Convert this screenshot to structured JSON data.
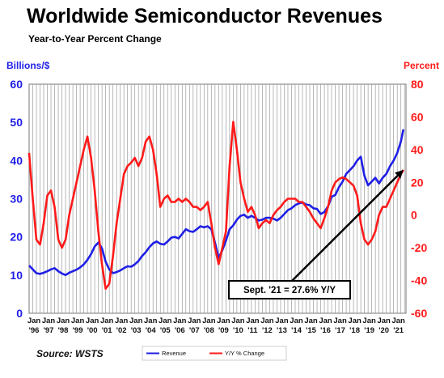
{
  "chart_data": {
    "type": "line",
    "title": "Worldwide Semiconductor Revenues",
    "subtitle": "Year-to-Year Percent Change",
    "y_left_label": "Billions/$",
    "y_right_label": "Percent",
    "ylim_left": [
      0,
      60
    ],
    "ylim_right": [
      -60,
      80
    ],
    "y_left_ticks": [
      "0",
      "10",
      "20",
      "30",
      "40",
      "50",
      "60"
    ],
    "y_right_ticks": [
      "-60",
      "-40",
      "-20",
      "0",
      "20",
      "40",
      "60",
      "80"
    ],
    "x_tick_top": "Jan",
    "x_tick_labels": [
      "'96",
      "'97",
      "'98",
      "'99",
      "'00",
      "'01",
      "'02",
      "'03",
      "'04",
      "'05",
      "'06",
      "'07",
      "'08",
      "'09",
      "'10",
      "'11",
      "'12",
      "'13",
      "'14",
      "'15",
      "'16",
      "'17",
      "'18",
      "'19",
      "'20",
      "'21"
    ],
    "grid": "vertical",
    "colors": {
      "revenue": "#1f1fe6",
      "yoy": "#ff1a1a",
      "left_axis": "#1f1fe6",
      "right_axis": "#ff1a1a"
    },
    "legend_position": "bottom-center",
    "series": [
      {
        "name": "Revenue",
        "axis": "left",
        "x": [
          1996.0,
          1996.25,
          1996.5,
          1996.75,
          1997.0,
          1997.25,
          1997.5,
          1997.75,
          1998.0,
          1998.25,
          1998.5,
          1998.75,
          1999.0,
          1999.25,
          1999.5,
          1999.75,
          2000.0,
          2000.25,
          2000.5,
          2000.75,
          2001.0,
          2001.25,
          2001.5,
          2001.75,
          2002.0,
          2002.25,
          2002.5,
          2002.75,
          2003.0,
          2003.25,
          2003.5,
          2003.75,
          2004.0,
          2004.25,
          2004.5,
          2004.75,
          2005.0,
          2005.25,
          2005.5,
          2005.75,
          2006.0,
          2006.25,
          2006.5,
          2006.75,
          2007.0,
          2007.25,
          2007.5,
          2007.75,
          2008.0,
          2008.25,
          2008.5,
          2008.75,
          2009.0,
          2009.25,
          2009.5,
          2009.75,
          2010.0,
          2010.25,
          2010.5,
          2010.75,
          2011.0,
          2011.25,
          2011.5,
          2011.75,
          2012.0,
          2012.25,
          2012.5,
          2012.75,
          2013.0,
          2013.25,
          2013.5,
          2013.75,
          2014.0,
          2014.25,
          2014.5,
          2014.75,
          2015.0,
          2015.25,
          2015.5,
          2015.75,
          2016.0,
          2016.25,
          2016.5,
          2016.75,
          2017.0,
          2017.25,
          2017.5,
          2017.75,
          2018.0,
          2018.25,
          2018.5,
          2018.75,
          2019.0,
          2019.25,
          2019.5,
          2019.75,
          2020.0,
          2020.25,
          2020.5,
          2020.75,
          2021.0,
          2021.25,
          2021.5,
          2021.67
        ],
        "values": [
          12.5,
          11.5,
          10.5,
          10.3,
          10.6,
          11.0,
          11.5,
          11.8,
          11.0,
          10.4,
          10.0,
          10.6,
          11.0,
          11.4,
          12.0,
          12.8,
          14.0,
          15.5,
          17.5,
          18.5,
          17.0,
          13.5,
          11.5,
          10.5,
          10.8,
          11.2,
          11.8,
          12.3,
          12.2,
          12.8,
          13.7,
          15.0,
          16.0,
          17.3,
          18.3,
          18.8,
          18.2,
          18.0,
          18.8,
          19.8,
          20.0,
          19.6,
          20.8,
          22.0,
          21.5,
          21.3,
          22.0,
          22.8,
          22.5,
          22.8,
          22.0,
          18.5,
          14.5,
          16.5,
          19.0,
          22.0,
          23.0,
          24.5,
          25.5,
          25.8,
          25.0,
          25.5,
          25.0,
          24.3,
          24.5,
          25.0,
          25.0,
          24.8,
          24.3,
          25.0,
          26.0,
          27.0,
          27.5,
          28.3,
          28.8,
          29.0,
          28.5,
          28.3,
          27.5,
          27.3,
          26.0,
          26.5,
          28.0,
          30.5,
          31.0,
          33.0,
          34.5,
          36.5,
          37.5,
          38.5,
          40.0,
          41.0,
          36.0,
          33.5,
          34.5,
          35.5,
          34.0,
          35.5,
          36.5,
          38.5,
          40.0,
          42.0,
          45.0,
          48.2
        ]
      },
      {
        "name": "Y/Y % Change",
        "axis": "right",
        "x": [
          1996.0,
          1996.25,
          1996.5,
          1996.75,
          1997.0,
          1997.25,
          1997.5,
          1997.75,
          1998.0,
          1998.25,
          1998.5,
          1998.75,
          1999.0,
          1999.25,
          1999.5,
          1999.75,
          2000.0,
          2000.25,
          2000.5,
          2000.75,
          2001.0,
          2001.25,
          2001.5,
          2001.75,
          2002.0,
          2002.25,
          2002.5,
          2002.75,
          2003.0,
          2003.25,
          2003.5,
          2003.75,
          2004.0,
          2004.25,
          2004.5,
          2004.75,
          2005.0,
          2005.25,
          2005.5,
          2005.75,
          2006.0,
          2006.25,
          2006.5,
          2006.75,
          2007.0,
          2007.25,
          2007.5,
          2007.75,
          2008.0,
          2008.25,
          2008.5,
          2008.75,
          2009.0,
          2009.25,
          2009.5,
          2009.75,
          2010.0,
          2010.25,
          2010.5,
          2010.75,
          2011.0,
          2011.25,
          2011.5,
          2011.75,
          2012.0,
          2012.25,
          2012.5,
          2012.75,
          2013.0,
          2013.25,
          2013.5,
          2013.75,
          2014.0,
          2014.25,
          2014.5,
          2014.75,
          2015.0,
          2015.25,
          2015.5,
          2015.75,
          2016.0,
          2016.25,
          2016.5,
          2016.75,
          2017.0,
          2017.25,
          2017.5,
          2017.75,
          2018.0,
          2018.25,
          2018.5,
          2018.75,
          2019.0,
          2019.25,
          2019.5,
          2019.75,
          2020.0,
          2020.25,
          2020.5,
          2020.75,
          2021.0,
          2021.25,
          2021.5,
          2021.67
        ],
        "values": [
          38,
          10,
          -15,
          -18,
          -5,
          12,
          15,
          5,
          -15,
          -20,
          -15,
          0,
          10,
          20,
          30,
          40,
          48,
          35,
          15,
          -10,
          -30,
          -45,
          -42,
          -25,
          -5,
          10,
          25,
          30,
          32,
          35,
          30,
          35,
          45,
          48,
          40,
          25,
          5,
          10,
          12,
          8,
          8,
          10,
          8,
          10,
          8,
          5,
          5,
          3,
          5,
          8,
          -5,
          -20,
          -30,
          -20,
          -10,
          30,
          57,
          40,
          20,
          10,
          2,
          5,
          0,
          -8,
          -5,
          -3,
          -5,
          0,
          3,
          5,
          8,
          10,
          10,
          10,
          8,
          8,
          5,
          2,
          -2,
          -5,
          -8,
          -2,
          5,
          15,
          20,
          22,
          23,
          22,
          20,
          18,
          12,
          -5,
          -15,
          -18,
          -15,
          -10,
          0,
          5,
          5,
          10,
          15,
          20,
          25,
          27.6
        ]
      }
    ],
    "annotation": "Sept. '21 = 27.6% Y/Y",
    "annotation_point": {
      "x": 2021.67,
      "y": 27.6,
      "axis": "right"
    },
    "source": "Source: WSTS"
  }
}
